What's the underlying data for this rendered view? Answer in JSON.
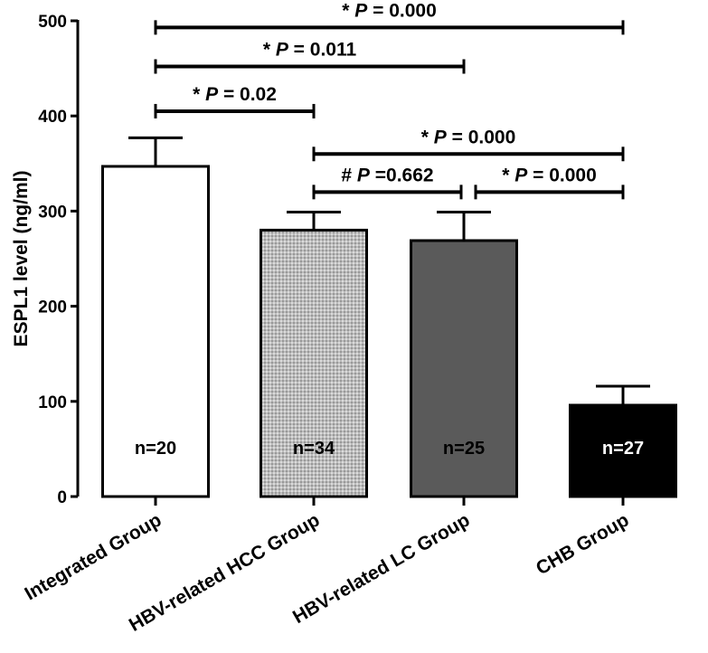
{
  "chart_data": {
    "type": "bar",
    "title": "",
    "xlabel": "",
    "ylabel": "ESPL1 level (ng/ml)",
    "ylim": [
      0,
      500
    ],
    "yticks": [
      0,
      100,
      200,
      300,
      400,
      500
    ],
    "grid": false,
    "legend": "none",
    "categories": [
      "Integrated Group",
      "HBV-related HCC Group",
      "HBV-related LC Group",
      "CHB Group"
    ],
    "values": [
      347,
      280,
      269,
      96
    ],
    "error_upper": [
      377,
      299,
      299,
      116
    ],
    "n_labels": [
      "n=20",
      "n=34",
      "n=25",
      "n=27"
    ],
    "bar_colors": [
      "#ffffff",
      "#c8c8c8",
      "#5a5a5a",
      "#000000"
    ],
    "n_label_colors": [
      "#000000",
      "#000000",
      "#000000",
      "#ffffff"
    ],
    "comparisons": [
      {
        "from": 0,
        "to": 3,
        "y": 493,
        "label": "* P = 0.000"
      },
      {
        "from": 0,
        "to": 2,
        "y": 452,
        "label": "* P = 0.011"
      },
      {
        "from": 0,
        "to": 1,
        "y": 405,
        "label": "* P = 0.02"
      },
      {
        "from": 1,
        "to": 3,
        "y": 360,
        "label": "* P = 0.000"
      },
      {
        "from": 1,
        "to": 2,
        "y": 320,
        "label": "# P =0.662"
      },
      {
        "from": 2,
        "to": 3,
        "y": 320,
        "label": "* P = 0.000"
      }
    ]
  }
}
